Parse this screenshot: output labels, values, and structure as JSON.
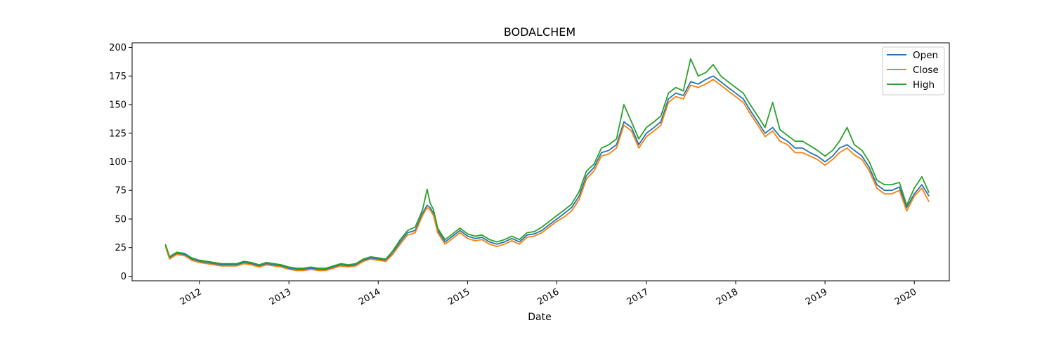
{
  "chart_data": {
    "type": "line",
    "title": "BODALCHEM",
    "xlabel": "Date",
    "ylabel": "",
    "xlim": [
      "2011-04-01",
      "2020-05-23"
    ],
    "ylim": [
      -4,
      204
    ],
    "x_ticks": [
      "2012",
      "2013",
      "2014",
      "2015",
      "2016",
      "2017",
      "2018",
      "2019",
      "2020"
    ],
    "y_ticks": [
      0,
      25,
      50,
      75,
      100,
      125,
      150,
      175,
      200
    ],
    "grid": false,
    "legend_position": "top-right",
    "x": [
      "2011-08-15",
      "2011-09-01",
      "2011-09-15",
      "2011-10-01",
      "2011-11-01",
      "2011-12-01",
      "2012-01-01",
      "2012-02-01",
      "2012-03-01",
      "2012-04-01",
      "2012-05-01",
      "2012-06-01",
      "2012-07-01",
      "2012-08-01",
      "2012-09-01",
      "2012-10-01",
      "2012-11-01",
      "2012-12-01",
      "2013-01-01",
      "2013-02-01",
      "2013-03-01",
      "2013-04-01",
      "2013-05-01",
      "2013-06-01",
      "2013-07-01",
      "2013-08-01",
      "2013-09-01",
      "2013-10-01",
      "2013-11-01",
      "2013-12-01",
      "2014-01-01",
      "2014-02-01",
      "2014-03-01",
      "2014-04-01",
      "2014-05-01",
      "2014-06-01",
      "2014-07-01",
      "2014-07-20",
      "2014-08-01",
      "2014-08-15",
      "2014-09-01",
      "2014-10-01",
      "2014-11-01",
      "2014-12-01",
      "2015-01-01",
      "2015-02-01",
      "2015-03-01",
      "2015-04-01",
      "2015-05-01",
      "2015-06-01",
      "2015-07-01",
      "2015-08-01",
      "2015-09-01",
      "2015-10-01",
      "2015-11-01",
      "2015-12-01",
      "2016-01-01",
      "2016-02-01",
      "2016-03-01",
      "2016-04-01",
      "2016-05-01",
      "2016-06-01",
      "2016-07-01",
      "2016-08-01",
      "2016-09-01",
      "2016-10-01",
      "2016-11-01",
      "2016-12-01",
      "2017-01-01",
      "2017-02-01",
      "2017-03-01",
      "2017-04-01",
      "2017-05-01",
      "2017-06-01",
      "2017-07-01",
      "2017-08-01",
      "2017-09-01",
      "2017-10-01",
      "2017-11-01",
      "2017-12-01",
      "2018-01-01",
      "2018-02-01",
      "2018-03-01",
      "2018-04-01",
      "2018-05-01",
      "2018-06-01",
      "2018-07-01",
      "2018-08-01",
      "2018-09-01",
      "2018-10-01",
      "2018-11-01",
      "2018-12-01",
      "2019-01-01",
      "2019-02-01",
      "2019-03-01",
      "2019-04-01",
      "2019-05-01",
      "2019-06-01",
      "2019-07-01",
      "2019-08-01",
      "2019-09-01",
      "2019-10-01",
      "2019-11-01",
      "2019-12-01",
      "2020-01-01",
      "2020-02-01",
      "2020-03-01"
    ],
    "series": [
      {
        "name": "Open",
        "color": "#1f77b4",
        "values": [
          27,
          16,
          18,
          20,
          19,
          15,
          13,
          12,
          11,
          10,
          10,
          10,
          12,
          11,
          9,
          11,
          10,
          9,
          7,
          6,
          6,
          7,
          6,
          6,
          8,
          10,
          9,
          10,
          14,
          16,
          15,
          14,
          20,
          30,
          38,
          40,
          55,
          62,
          60,
          55,
          40,
          30,
          35,
          40,
          35,
          33,
          34,
          30,
          28,
          30,
          33,
          30,
          36,
          37,
          40,
          45,
          50,
          55,
          60,
          70,
          88,
          95,
          108,
          110,
          115,
          135,
          130,
          115,
          125,
          130,
          135,
          155,
          160,
          158,
          170,
          168,
          172,
          175,
          170,
          165,
          160,
          155,
          145,
          135,
          125,
          130,
          122,
          118,
          112,
          112,
          108,
          105,
          100,
          105,
          112,
          115,
          110,
          105,
          95,
          80,
          75,
          75,
          78,
          60,
          72,
          80,
          70
        ]
      },
      {
        "name": "Close",
        "color": "#ff7f0e",
        "values": [
          26,
          15,
          17,
          19,
          18,
          14,
          12,
          11,
          10,
          9,
          9,
          9,
          11,
          10,
          8,
          10,
          9,
          8,
          6,
          5,
          5,
          6,
          5,
          5,
          7,
          9,
          8,
          9,
          13,
          15,
          14,
          13,
          19,
          28,
          36,
          38,
          53,
          60,
          58,
          53,
          38,
          28,
          33,
          38,
          33,
          31,
          32,
          28,
          26,
          28,
          31,
          28,
          34,
          35,
          38,
          43,
          48,
          52,
          57,
          67,
          85,
          92,
          105,
          107,
          112,
          132,
          127,
          112,
          122,
          127,
          132,
          152,
          157,
          155,
          167,
          165,
          168,
          172,
          167,
          162,
          157,
          152,
          142,
          132,
          122,
          127,
          118,
          115,
          108,
          108,
          105,
          102,
          97,
          102,
          108,
          112,
          106,
          102,
          92,
          77,
          72,
          72,
          75,
          57,
          70,
          77,
          65
        ]
      },
      {
        "name": "High",
        "color": "#2ca02c",
        "values": [
          28,
          17,
          19,
          21,
          20,
          16,
          14,
          13,
          12,
          11,
          11,
          11,
          13,
          12,
          10,
          12,
          11,
          10,
          8,
          7,
          7,
          8,
          7,
          7,
          9,
          11,
          10,
          11,
          15,
          17,
          16,
          15,
          22,
          32,
          40,
          43,
          58,
          76,
          64,
          58,
          42,
          32,
          37,
          42,
          37,
          35,
          36,
          32,
          30,
          32,
          35,
          32,
          38,
          39,
          43,
          48,
          53,
          58,
          63,
          74,
          92,
          98,
          112,
          115,
          120,
          150,
          135,
          120,
          130,
          135,
          140,
          160,
          165,
          162,
          190,
          175,
          178,
          185,
          175,
          170,
          165,
          160,
          150,
          140,
          130,
          152,
          128,
          123,
          118,
          118,
          114,
          110,
          105,
          110,
          118,
          130,
          115,
          110,
          100,
          84,
          80,
          80,
          82,
          62,
          77,
          87,
          73
        ]
      }
    ]
  }
}
